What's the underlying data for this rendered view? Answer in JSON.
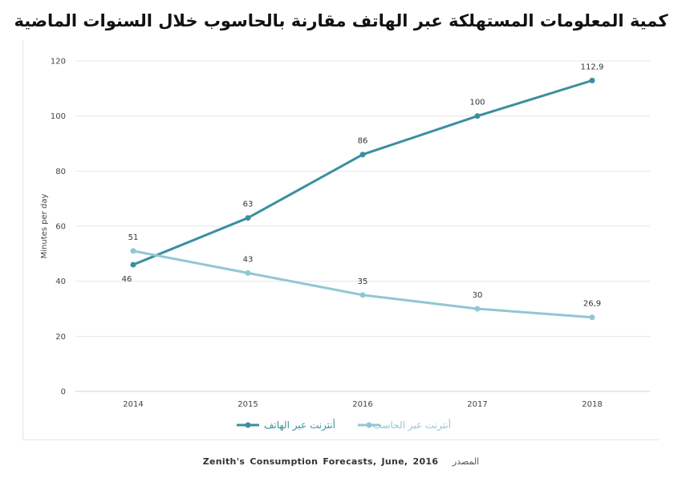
{
  "chart_data": {
    "type": "line",
    "title": "كمية المعلومات المستهلكة عبر الهاتف مقارنة بالحاسوب خلال السنوات الماضية",
    "xlabel": "",
    "ylabel": "Minutes per day",
    "categories": [
      "2014",
      "2015",
      "2016",
      "2017",
      "2018"
    ],
    "ylim": [
      0,
      120
    ],
    "yticks": [
      0,
      20,
      40,
      60,
      80,
      100,
      120
    ],
    "grid": true,
    "legend_position": "bottom",
    "series": [
      {
        "name": "أنترنت عبر الهاتف",
        "color": "#3a8fa0",
        "values": [
          46,
          63,
          86,
          100,
          112.9
        ],
        "labels": [
          "46",
          "63",
          "86",
          "100",
          "112,9"
        ]
      },
      {
        "name": "أنترنت عبر الحاسب",
        "color": "#93c6d4",
        "values": [
          51,
          43,
          35,
          30,
          26.9
        ],
        "labels": [
          "51",
          "43",
          "35",
          "30",
          "26,9"
        ]
      }
    ]
  },
  "source": {
    "text": "Zenith's Consumption Forecasts, June, 2016",
    "label": "المصدر"
  }
}
